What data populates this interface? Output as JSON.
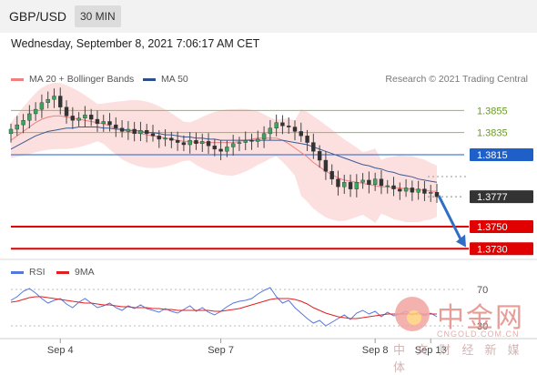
{
  "header": {
    "symbol": "GBP/USD",
    "timeframe": "30 MIN",
    "datetime": "Wednesday, September 8, 2021 7:06:17 AM CET"
  },
  "legend": {
    "ma20_label": "MA 20 + Bollinger Bands",
    "ma20_color": "#f08080",
    "ma50_label": "MA 50",
    "ma50_color": "#2c4f8c",
    "credit": "Research © 2021 Trading Central"
  },
  "rsi_legend": {
    "rsi_label": "RSI",
    "rsi_color": "#5577dd",
    "ma9_label": "9MA",
    "ma9_color": "#e02020"
  },
  "chart_data": {
    "type": "candlestick",
    "instrument": "GBP/USD",
    "interval": "30 MIN",
    "ylim": [
      1.3722,
      1.3875
    ],
    "x_tick_labels": [
      "Sep 4",
      "Sep 7",
      "Sep 8",
      "Sep 13"
    ],
    "grid": false,
    "levels": [
      {
        "label": "1.3855",
        "value": 1.3855,
        "style": "resistance",
        "color": "#8cbf4a"
      },
      {
        "label": "1.3835",
        "value": 1.3835,
        "style": "resistance",
        "color": "#8cbf4a"
      },
      {
        "label": "1.3815",
        "value": 1.3815,
        "style": "pivot",
        "color": "#1f5fc8"
      },
      {
        "label": "1.3777",
        "value": 1.3777,
        "style": "last",
        "color": "#333333"
      },
      {
        "label": "1.3750",
        "value": 1.375,
        "style": "target",
        "color": "#e00000"
      },
      {
        "label": "1.3730",
        "value": 1.373,
        "style": "target",
        "color": "#e00000"
      }
    ],
    "close": [
      1.3838,
      1.3842,
      1.3846,
      1.3852,
      1.3856,
      1.3862,
      1.3865,
      1.3868,
      1.3858,
      1.385,
      1.3846,
      1.3848,
      1.3851,
      1.3847,
      1.3843,
      1.3845,
      1.3842,
      1.3839,
      1.3836,
      1.3838,
      1.3834,
      1.3837,
      1.3834,
      1.3832,
      1.3829,
      1.383,
      1.3828,
      1.3826,
      1.3824,
      1.3828,
      1.3825,
      1.3827,
      1.3823,
      1.382,
      1.3818,
      1.3822,
      1.3825,
      1.3826,
      1.3828,
      1.3827,
      1.3829,
      1.3834,
      1.3839,
      1.3844,
      1.3841,
      1.384,
      1.3836,
      1.3832,
      1.3826,
      1.3818,
      1.381,
      1.38,
      1.3793,
      1.3786,
      1.379,
      1.3784,
      1.379,
      1.3792,
      1.3788,
      1.3793,
      1.3787,
      1.3787,
      1.3784,
      1.3782,
      1.3785,
      1.3781,
      1.3784,
      1.378,
      1.3781,
      1.3777
    ],
    "ma20": [
      1.3828,
      1.3832,
      1.3836,
      1.384,
      1.3844,
      1.3847,
      1.3849,
      1.385,
      1.385,
      1.3849,
      1.3848,
      1.3847,
      1.3846,
      1.3845,
      1.3844,
      1.3843,
      1.3841,
      1.3839,
      1.3837,
      1.3836,
      1.3835,
      1.3834,
      1.3833,
      1.3832,
      1.3831,
      1.383,
      1.3829,
      1.3828,
      1.3827,
      1.3827,
      1.3826,
      1.3826,
      1.3826,
      1.3826,
      1.3826,
      1.3826,
      1.3826,
      1.3827,
      1.3828,
      1.3829,
      1.383,
      1.383,
      1.383,
      1.383,
      1.3828,
      1.3825,
      1.3821,
      1.3817,
      1.3813,
      1.3808,
      1.3804,
      1.38,
      1.3797,
      1.3794,
      1.3792,
      1.3791,
      1.379,
      1.3789,
      1.3788,
      1.3787,
      1.3786,
      1.3786,
      1.3785,
      1.3785,
      1.3784,
      1.3784,
      1.3783,
      1.3783,
      1.3782,
      1.3782
    ],
    "ma50": [
      1.382,
      1.3823,
      1.3826,
      1.3829,
      1.3832,
      1.3834,
      1.3836,
      1.3837,
      1.3838,
      1.3839,
      1.3839,
      1.384,
      1.384,
      1.384,
      1.384,
      1.3839,
      1.3839,
      1.3838,
      1.3838,
      1.3837,
      1.3837,
      1.3836,
      1.3835,
      1.3835,
      1.3834,
      1.3833,
      1.3833,
      1.3832,
      1.3831,
      1.3831,
      1.383,
      1.383,
      1.3829,
      1.3829,
      1.3828,
      1.3828,
      1.3828,
      1.3828,
      1.3828,
      1.3828,
      1.3828,
      1.3828,
      1.3828,
      1.3828,
      1.3828,
      1.3827,
      1.3826,
      1.3825,
      1.3824,
      1.3822,
      1.382,
      1.3818,
      1.3816,
      1.3814,
      1.3812,
      1.381,
      1.3808,
      1.3806,
      1.3805,
      1.3803,
      1.3802,
      1.38,
      1.3799,
      1.3797,
      1.3796,
      1.3795,
      1.3793,
      1.3792,
      1.3791,
      1.379
    ],
    "forecast_arrow": {
      "from": 1.3778,
      "to": 1.3733,
      "direction": "down"
    },
    "rsi": {
      "levels": [
        {
          "label": "70",
          "value": 70
        },
        {
          "label": "30",
          "value": 30
        }
      ],
      "ylim": [
        20,
        80
      ],
      "rsi_values": [
        58,
        62,
        68,
        71,
        66,
        60,
        55,
        58,
        60,
        54,
        50,
        56,
        60,
        55,
        50,
        52,
        55,
        50,
        47,
        52,
        49,
        53,
        49,
        47,
        45,
        49,
        46,
        44,
        48,
        52,
        46,
        50,
        45,
        42,
        46,
        51,
        55,
        57,
        58,
        60,
        65,
        69,
        72,
        62,
        55,
        58,
        50,
        44,
        38,
        33,
        36,
        30,
        34,
        38,
        42,
        37,
        44,
        47,
        43,
        46,
        40,
        45,
        41,
        43,
        46,
        42,
        45,
        41,
        44,
        40
      ],
      "ma9_values": [
        56,
        57,
        59,
        61,
        62,
        62,
        61,
        60,
        59,
        58,
        57,
        56,
        55,
        55,
        54,
        53,
        53,
        52,
        51,
        51,
        50,
        50,
        50,
        49,
        49,
        48,
        48,
        47,
        47,
        47,
        47,
        47,
        47,
        46,
        46,
        47,
        48,
        49,
        51,
        53,
        55,
        57,
        59,
        60,
        60,
        60,
        59,
        57,
        54,
        50,
        47,
        44,
        42,
        40,
        39,
        38,
        38,
        39,
        40,
        41,
        42,
        43,
        43,
        43,
        43,
        43,
        43,
        43,
        43,
        43
      ]
    }
  },
  "watermark": {
    "brand": "中金网",
    "url": "CNGOLD.COM.CN",
    "subtitle": "中 文 财 经 新 媒 体"
  }
}
